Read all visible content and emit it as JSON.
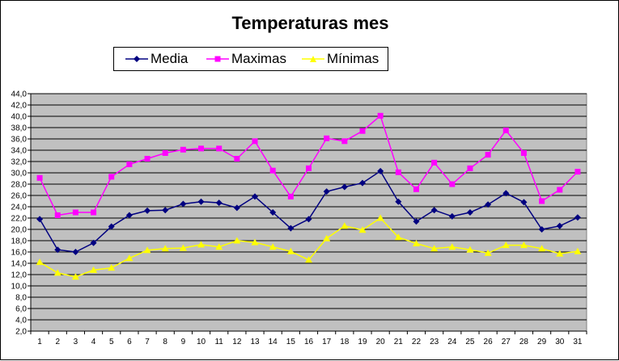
{
  "chart_data": {
    "type": "line",
    "title": "Temperaturas mes",
    "xlabel": "",
    "ylabel": "",
    "x": [
      1,
      2,
      3,
      4,
      5,
      6,
      7,
      8,
      9,
      10,
      11,
      12,
      13,
      14,
      15,
      16,
      17,
      18,
      19,
      20,
      21,
      22,
      23,
      24,
      25,
      26,
      27,
      28,
      29,
      30,
      31
    ],
    "ylim": [
      2.0,
      44.0
    ],
    "y_ticks": [
      "2,0",
      "4,0",
      "6,0",
      "8,0",
      "10,0",
      "12,0",
      "14,0",
      "16,0",
      "18,0",
      "20,0",
      "22,0",
      "24,0",
      "26,0",
      "28,0",
      "30,0",
      "32,0",
      "34,0",
      "36,0",
      "38,0",
      "40,0",
      "42,0",
      "44,0"
    ],
    "grid": true,
    "plot_background": "#C0C0C0",
    "legend_position": "top-left",
    "series": [
      {
        "name": "Media",
        "color": "#000080",
        "marker": "diamond",
        "values": [
          21.8,
          16.4,
          16.0,
          17.6,
          20.5,
          22.5,
          23.3,
          23.4,
          24.5,
          24.9,
          24.7,
          23.8,
          25.8,
          23.0,
          20.2,
          21.8,
          26.7,
          27.5,
          28.2,
          30.3,
          24.9,
          21.4,
          23.4,
          22.3,
          23.0,
          24.4,
          26.4,
          24.8,
          20.0,
          20.6,
          22.1
        ]
      },
      {
        "name": "Maximas",
        "color": "#FF00FF",
        "marker": "square",
        "values": [
          29.1,
          22.5,
          23.0,
          23.0,
          29.3,
          31.5,
          32.5,
          33.5,
          34.1,
          34.3,
          34.3,
          32.5,
          35.6,
          30.4,
          25.8,
          30.8,
          36.1,
          35.6,
          37.4,
          40.1,
          30.1,
          27.1,
          31.8,
          28.0,
          30.8,
          33.2,
          37.5,
          33.5,
          25.0,
          27.0,
          30.2
        ]
      },
      {
        "name": "Mínimas",
        "color": "#FFFF00",
        "marker": "triangle",
        "values": [
          14.2,
          12.3,
          11.6,
          12.8,
          13.2,
          14.9,
          16.3,
          16.6,
          16.7,
          17.3,
          16.9,
          18.0,
          17.7,
          16.9,
          16.1,
          14.6,
          18.4,
          20.6,
          19.9,
          22.0,
          18.6,
          17.5,
          16.6,
          16.9,
          16.4,
          15.8,
          17.2,
          17.2,
          16.6,
          15.7,
          16.1
        ]
      }
    ]
  }
}
